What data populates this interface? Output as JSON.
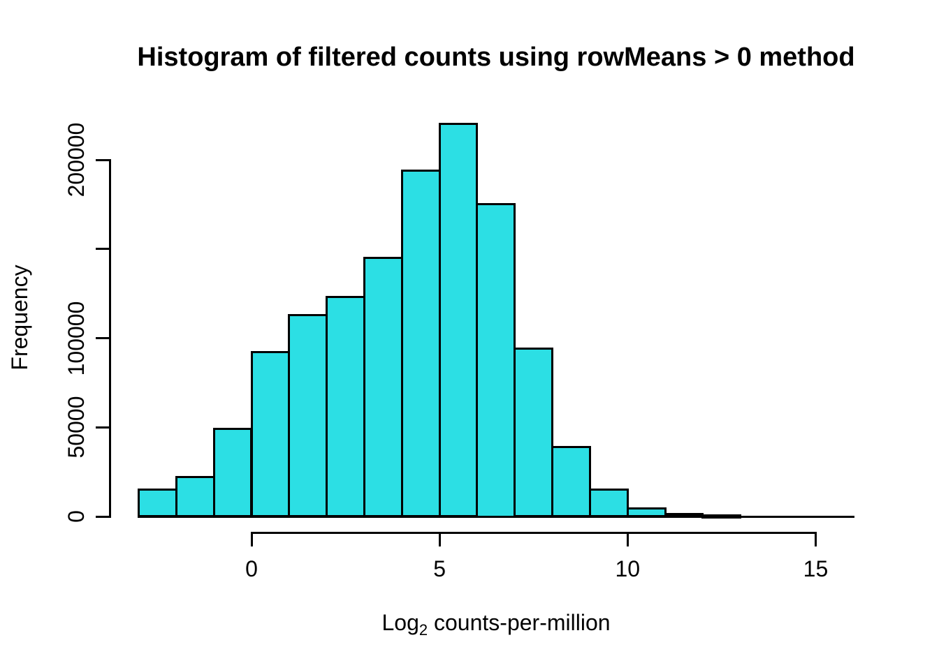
{
  "chart_data": {
    "type": "bar",
    "subtype": "histogram",
    "title": "Histogram of filtered counts using rowMeans > 0 method",
    "xlabel": "Log2 counts-per-million",
    "xlabel_parts": {
      "main": "Log",
      "sub": "2",
      "rest": " counts-per-million"
    },
    "ylabel": "Frequency",
    "bin_breaks": [
      -3,
      -2,
      -1,
      0,
      1,
      2,
      3,
      4,
      5,
      6,
      7,
      8,
      9,
      10,
      11,
      12,
      13,
      14,
      15,
      16
    ],
    "counts": [
      15000,
      22000,
      49000,
      92000,
      113000,
      123000,
      145000,
      194000,
      220000,
      175000,
      94000,
      39000,
      15000,
      4600,
      1300,
      400,
      0,
      0,
      0
    ],
    "x_ticks": [
      {
        "value": 0,
        "label": "0"
      },
      {
        "value": 5,
        "label": "5"
      },
      {
        "value": 10,
        "label": "10"
      },
      {
        "value": 15,
        "label": "15"
      }
    ],
    "y_ticks": [
      {
        "value": 0,
        "label": "0"
      },
      {
        "value": 50000,
        "label": "50000"
      },
      {
        "value": 100000,
        "label": "100000"
      },
      {
        "value": 150000,
        "label": ""
      },
      {
        "value": 200000,
        "label": "200000"
      }
    ],
    "xlim": [
      0,
      15
    ],
    "ylim": [
      0,
      200000
    ],
    "grid": false,
    "legend": null,
    "bar_fill": "#2CDFE4",
    "bar_border": "#000000",
    "axis_color": "#000000",
    "background": "#ffffff"
  }
}
